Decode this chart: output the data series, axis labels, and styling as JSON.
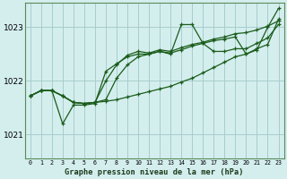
{
  "title": "Graphe pression niveau de la mer (hPa)",
  "background_color": "#d4eeee",
  "grid_color": "#a8cccc",
  "line_color": "#1a5c1a",
  "x_labels": [
    "0",
    "1",
    "2",
    "3",
    "4",
    "5",
    "6",
    "7",
    "8",
    "9",
    "10",
    "11",
    "12",
    "13",
    "14",
    "15",
    "16",
    "17",
    "18",
    "19",
    "20",
    "21",
    "22",
    "23"
  ],
  "y_ticks": [
    1021,
    1022,
    1023
  ],
  "ylim": [
    1020.55,
    1023.45
  ],
  "xlim": [
    -0.5,
    23.5
  ],
  "series": [
    [
      1021.72,
      1021.82,
      1021.82,
      1021.72,
      1021.6,
      1021.58,
      1021.6,
      1021.65,
      1022.05,
      1022.3,
      1022.45,
      1022.5,
      1022.55,
      1022.5,
      1023.05,
      1023.05,
      1022.7,
      1022.55,
      1022.55,
      1022.6,
      1022.6,
      1022.7,
      1022.8,
      1023.05
    ],
    [
      1021.72,
      1021.82,
      1021.82,
      1021.72,
      1021.6,
      1021.58,
      1021.6,
      1022.0,
      1022.3,
      1022.48,
      1022.55,
      1022.52,
      1022.58,
      1022.55,
      1022.62,
      1022.68,
      1022.72,
      1022.78,
      1022.82,
      1022.88,
      1022.9,
      1022.95,
      1023.02,
      1023.12
    ],
    [
      1021.72,
      1021.82,
      1021.82,
      1021.2,
      1021.55,
      1021.55,
      1021.58,
      1022.18,
      1022.32,
      1022.45,
      1022.5,
      1022.5,
      1022.55,
      1022.52,
      1022.58,
      1022.65,
      1022.7,
      1022.75,
      1022.78,
      1022.82,
      1022.5,
      1022.58,
      1023.0,
      1023.35
    ],
    [
      1021.72,
      1021.82,
      1021.82,
      1021.72,
      1021.6,
      1021.58,
      1021.6,
      1021.62,
      1021.65,
      1021.7,
      1021.75,
      1021.8,
      1021.85,
      1021.9,
      1021.98,
      1022.05,
      1022.15,
      1022.25,
      1022.35,
      1022.45,
      1022.5,
      1022.6,
      1022.68,
      1023.15
    ]
  ]
}
